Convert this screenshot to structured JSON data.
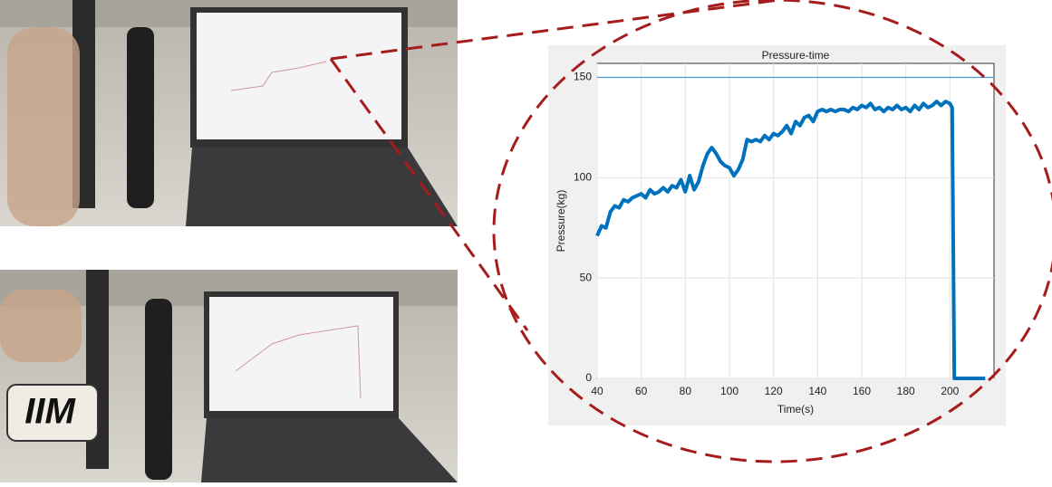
{
  "photo_sign": "IIM",
  "chart_data": {
    "type": "line",
    "title": "Pressure-time",
    "x_label": "Time(s)",
    "y_label": "Pressure(kg)",
    "x": [
      40,
      42,
      44,
      46,
      48,
      50,
      52,
      54,
      56,
      58,
      60,
      62,
      64,
      66,
      68,
      70,
      72,
      74,
      76,
      78,
      80,
      82,
      84,
      86,
      88,
      90,
      92,
      94,
      96,
      98,
      100,
      102,
      104,
      106,
      108,
      110,
      112,
      114,
      116,
      118,
      120,
      122,
      124,
      126,
      128,
      130,
      132,
      134,
      136,
      138,
      140,
      142,
      144,
      146,
      148,
      150,
      152,
      154,
      156,
      158,
      160,
      162,
      164,
      166,
      168,
      170,
      172,
      174,
      176,
      178,
      180,
      182,
      184,
      186,
      188,
      190,
      192,
      194,
      196,
      198,
      200,
      201,
      202,
      216
    ],
    "series": [
      {
        "color": "#0072bd",
        "values": [
          71,
          76,
          75,
          83,
          86,
          85,
          89,
          88,
          90,
          91,
          92,
          90,
          94,
          92,
          93,
          95,
          93,
          96,
          95,
          99,
          93,
          101,
          94,
          98,
          106,
          112,
          115,
          112,
          108,
          106,
          105,
          101,
          104,
          109,
          119,
          118,
          119,
          118,
          121,
          119,
          122,
          121,
          123,
          126,
          122,
          128,
          126,
          130,
          131,
          128,
          133,
          134,
          133,
          134,
          133,
          134,
          134,
          133,
          135,
          134,
          136,
          135,
          137,
          134,
          135,
          133,
          135,
          134,
          136,
          134,
          135,
          133,
          136,
          134,
          137,
          135,
          136,
          138,
          136,
          138,
          137,
          135,
          0,
          0
        ]
      }
    ],
    "reference_line": {
      "value": 150,
      "color": "#4a9ad0"
    },
    "xlim": [
      40,
      220
    ],
    "ylim": [
      0,
      157
    ],
    "xticks": [
      40,
      60,
      80,
      100,
      120,
      140,
      160,
      180,
      200
    ],
    "yticks": [
      0,
      50,
      100,
      150
    ],
    "grid": true
  }
}
